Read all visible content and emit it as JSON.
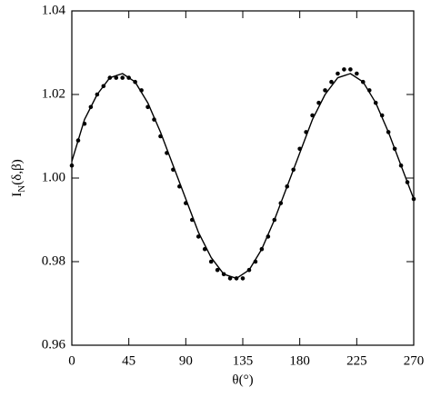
{
  "chart_data": {
    "type": "scatter-line",
    "xlabel": "θ(°)",
    "ylabel": {
      "main": "I",
      "sub": "N",
      "rest": "(δ,β)"
    },
    "xlim": [
      0,
      270
    ],
    "xticks": [
      0,
      45,
      90,
      135,
      180,
      225,
      270
    ],
    "ylim": [
      0.96,
      1.04
    ],
    "yticks": [
      0.96,
      0.98,
      {
        "value": 1,
        "label": "1.00"
      },
      1.02,
      1.04
    ],
    "series": [
      {
        "type": "scatter",
        "color": "#000000",
        "x": [
          0,
          5,
          10,
          15,
          20,
          25,
          30,
          35,
          40,
          45,
          50,
          55,
          60,
          65,
          70,
          75,
          80,
          85,
          90,
          95,
          100,
          105,
          110,
          115,
          120,
          125,
          130,
          135,
          140,
          145,
          150,
          155,
          160,
          165,
          170,
          175,
          180,
          185,
          190,
          195,
          200,
          205,
          210,
          215,
          220,
          225,
          230,
          235,
          240,
          245,
          250,
          255,
          260,
          265,
          270
        ],
        "values": [
          1.003,
          1.009,
          1.013,
          1.017,
          1.02,
          1.022,
          1.024,
          1.024,
          1.024,
          1.024,
          1.023,
          1.021,
          1.017,
          1.014,
          1.01,
          1.006,
          1.002,
          0.998,
          0.994,
          0.99,
          0.986,
          0.983,
          0.98,
          0.978,
          0.977,
          0.976,
          0.976,
          0.976,
          0.978,
          0.98,
          0.983,
          0.986,
          0.99,
          0.994,
          0.998,
          1.002,
          1.007,
          1.011,
          1.015,
          1.018,
          1.021,
          1.023,
          1.025,
          1.026,
          1.026,
          1.025,
          1.023,
          1.021,
          1.018,
          1.015,
          1.011,
          1.007,
          1.003,
          0.999,
          0.995
        ]
      },
      {
        "type": "line",
        "color": "#000000",
        "x": [
          0,
          10,
          20,
          30,
          40,
          50,
          60,
          70,
          80,
          90,
          100,
          110,
          120,
          130,
          140,
          150,
          160,
          170,
          180,
          190,
          200,
          210,
          220,
          230,
          240,
          250,
          260,
          270
        ],
        "values": [
          1.004,
          1.014,
          1.02,
          1.024,
          1.025,
          1.023,
          1.018,
          1.011,
          1.003,
          0.995,
          0.987,
          0.981,
          0.977,
          0.976,
          0.978,
          0.983,
          0.99,
          0.998,
          1.006,
          1.014,
          1.02,
          1.024,
          1.025,
          1.023,
          1.018,
          1.011,
          1.003,
          0.995
        ]
      }
    ]
  }
}
